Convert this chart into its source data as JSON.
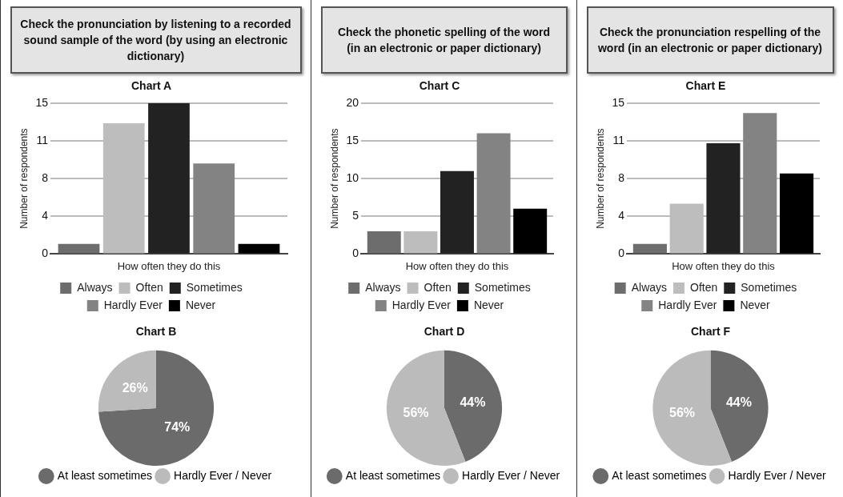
{
  "chart_data": [
    {
      "type": "bar",
      "title": "Check the pronunciation by listening to a recorded sound sample of the word (by using an electronic dictionary)",
      "subtitle": "Chart A",
      "xlabel": "How often they do this",
      "ylabel": "Number of respondents",
      "categories": [
        null
      ],
      "series": [
        {
          "name": "Always",
          "color": "#6d6d6d",
          "values": [
            1
          ]
        },
        {
          "name": "Often",
          "color": "#bdbdbd",
          "values": [
            13
          ]
        },
        {
          "name": "Sometimes",
          "color": "#222222",
          "values": [
            15
          ]
        },
        {
          "name": "Hardly Ever",
          "color": "#838383",
          "values": [
            9
          ]
        },
        {
          "name": "Never",
          "color": "#000000",
          "values": [
            1
          ]
        }
      ],
      "ylim": [
        0,
        15
      ],
      "yticks": [
        0,
        {
          "value": 3.75,
          "label": "4"
        },
        {
          "value": 7.5,
          "label": "8"
        },
        {
          "value": 11.25,
          "label": "11"
        },
        15
      ],
      "grid": "y",
      "tick_labels": "y",
      "legend": "bottom"
    },
    {
      "type": "pie",
      "title": "Chart B",
      "categories": [
        "At least sometimes",
        "Hardly Ever / Never"
      ],
      "values": [
        74,
        26
      ],
      "colors": [
        "#6b6b6b",
        "#bbbbbb"
      ],
      "value_labels": [
        "74%",
        "26%"
      ],
      "legend": "bottom"
    },
    {
      "type": "bar",
      "title": "Check the phonetic spelling of the word (in an electronic or paper dictionary)",
      "subtitle": "Chart C",
      "xlabel": "How often they do this",
      "ylabel": "Number of respondents",
      "categories": [
        null
      ],
      "series": [
        {
          "name": "Always",
          "color": "#6d6d6d",
          "values": [
            3
          ]
        },
        {
          "name": "Often",
          "color": "#bdbdbd",
          "values": [
            3
          ]
        },
        {
          "name": "Sometimes",
          "color": "#222222",
          "values": [
            11
          ]
        },
        {
          "name": "Hardly Ever",
          "color": "#838383",
          "values": [
            16
          ]
        },
        {
          "name": "Never",
          "color": "#000000",
          "values": [
            6
          ]
        }
      ],
      "ylim": [
        0,
        20
      ],
      "yticks": [
        0,
        5,
        10,
        15,
        20
      ],
      "grid": "y",
      "tick_labels": "y",
      "legend": "bottom"
    },
    {
      "type": "pie",
      "title": "Chart D",
      "categories": [
        "At least sometimes",
        "Hardly Ever / Never"
      ],
      "values": [
        44,
        56
      ],
      "colors": [
        "#6b6b6b",
        "#bbbbbb"
      ],
      "value_labels": [
        "44%",
        "56%"
      ],
      "legend": "bottom"
    },
    {
      "type": "bar",
      "title": "Check the pronunciation respelling of the word (in an electronic or paper dictionary)",
      "subtitle": "Chart E",
      "xlabel": "How often they do this",
      "ylabel": "Number of respondents",
      "categories": [
        null
      ],
      "series": [
        {
          "name": "Always",
          "color": "#6d6d6d",
          "values": [
            1
          ]
        },
        {
          "name": "Often",
          "color": "#bdbdbd",
          "values": [
            5
          ]
        },
        {
          "name": "Sometimes",
          "color": "#222222",
          "values": [
            11
          ]
        },
        {
          "name": "Hardly Ever",
          "color": "#838383",
          "values": [
            14
          ]
        },
        {
          "name": "Never",
          "color": "#000000",
          "values": [
            8
          ]
        }
      ],
      "ylim": [
        0,
        15
      ],
      "yticks": [
        0,
        {
          "value": 3.75,
          "label": "4"
        },
        {
          "value": 7.5,
          "label": "8"
        },
        {
          "value": 11.25,
          "label": "11"
        },
        15
      ],
      "grid": "y",
      "tick_labels": "y",
      "legend": "bottom"
    },
    {
      "type": "pie",
      "title": "Chart F",
      "categories": [
        "At least sometimes",
        "Hardly Ever / Never"
      ],
      "values": [
        44,
        56
      ],
      "colors": [
        "#6b6b6b",
        "#bbbbbb"
      ],
      "value_labels": [
        "44%",
        "56%"
      ],
      "legend": "bottom"
    }
  ]
}
